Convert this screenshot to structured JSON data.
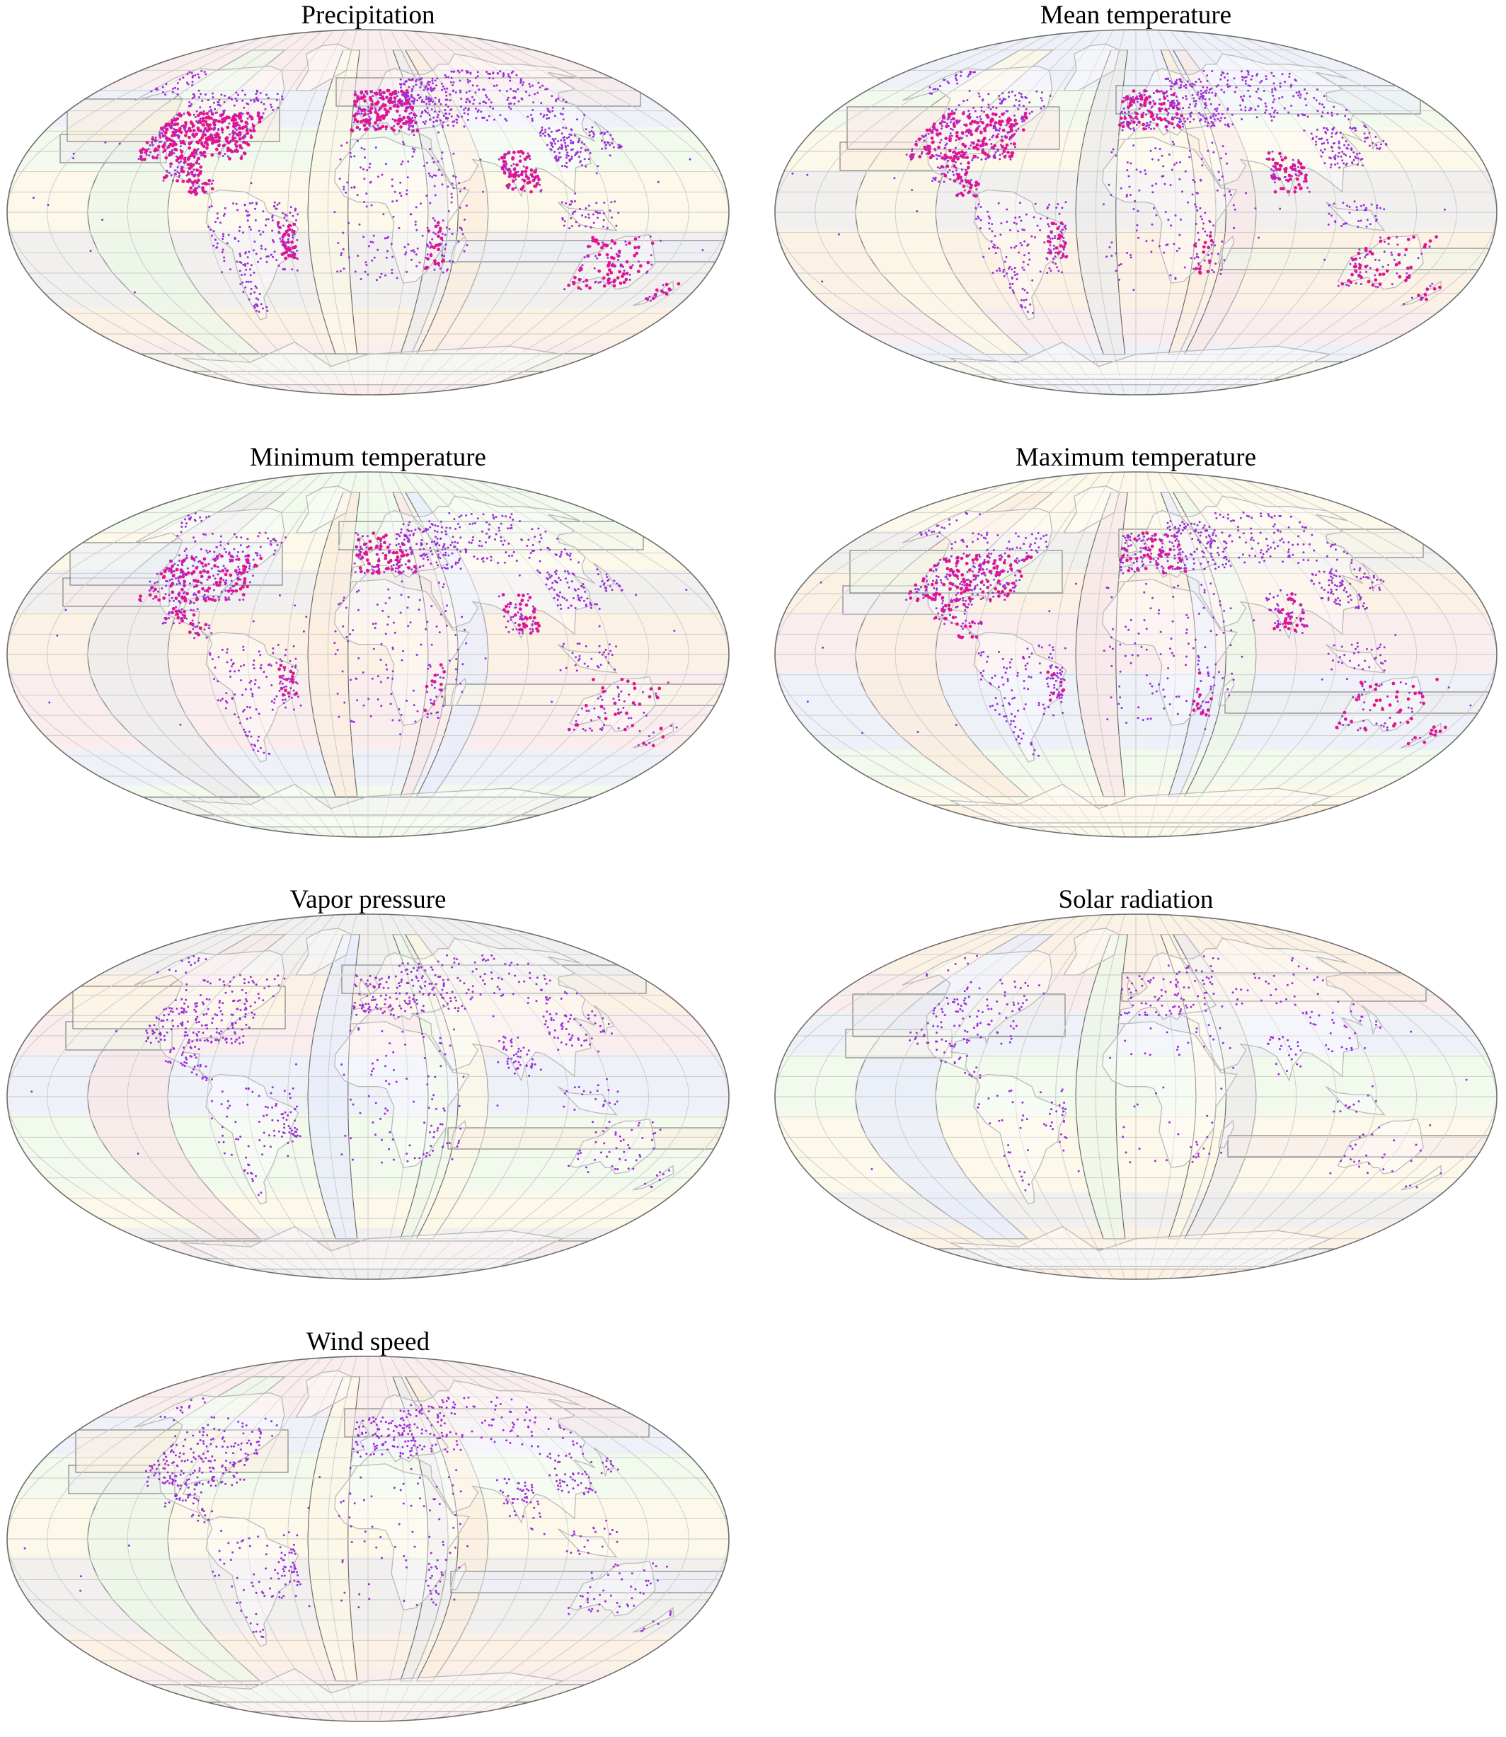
{
  "figure": {
    "panels": [
      {
        "id": "precipitation",
        "title": "Precipitation",
        "density": 1.0,
        "seed": 11
      },
      {
        "id": "mean-temperature",
        "title": "Mean temperature",
        "density": 0.78,
        "seed": 23
      },
      {
        "id": "minimum-temperature",
        "title": "Minimum temperature",
        "density": 0.66,
        "seed": 37
      },
      {
        "id": "maximum-temperature",
        "title": "Maximum temperature",
        "density": 0.66,
        "seed": 41
      },
      {
        "id": "vapor-pressure",
        "title": "Vapor pressure",
        "density": 0.42,
        "seed": 53
      },
      {
        "id": "solar-radiation",
        "title": "Solar radiation",
        "density": 0.22,
        "seed": 67
      },
      {
        "id": "wind-speed",
        "title": "Wind speed",
        "density": 0.42,
        "seed": 79
      }
    ]
  },
  "colors": {
    "station_dot": "#9b2fd8",
    "dense_station": "#e0168f",
    "coastline": "#b9b9b9",
    "graticule": "#c8c8c8",
    "tile_border": "#6e6e6e",
    "outline": "#6e6e6e",
    "zone_fills": [
      "#f7e9e9",
      "#e9eefa",
      "#eef8e9",
      "#fbf8e6",
      "#ececec",
      "#fbeedf"
    ]
  },
  "projection": "Robinson"
}
